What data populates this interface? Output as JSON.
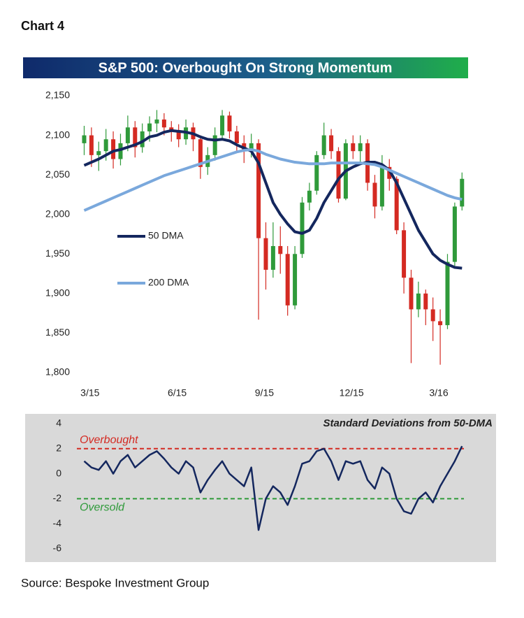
{
  "header": "Chart 4",
  "source": "Source: Bespoke Investment Group",
  "chart_data": [
    {
      "type": "candlestick",
      "title": "S&P 500: Overbought On Strong Momentum",
      "x": [
        2.8,
        3.05,
        3.3,
        3.55,
        3.8,
        4.05,
        4.3,
        4.55,
        4.8,
        5.05,
        5.3,
        5.55,
        5.8,
        6.05,
        6.3,
        6.55,
        6.8,
        7.05,
        7.3,
        7.55,
        7.8,
        8.05,
        8.3,
        8.55,
        8.8,
        9.05,
        9.3,
        9.55,
        9.8,
        10.05,
        10.3,
        10.55,
        10.8,
        11.05,
        11.3,
        11.55,
        11.8,
        12.05,
        12.3,
        12.55,
        12.8,
        13.05,
        13.3,
        13.55,
        13.8,
        14.05,
        14.3,
        14.55,
        14.8,
        15.05,
        15.3,
        15.55,
        15.8
      ],
      "open": [
        2090,
        2100,
        2075,
        2080,
        2095,
        2070,
        2090,
        2110,
        2085,
        2105,
        2115,
        2120,
        2110,
        2105,
        2095,
        2110,
        2095,
        2060,
        2075,
        2100,
        2125,
        2105,
        2090,
        2080,
        2090,
        1970,
        1930,
        1960,
        1950,
        1885,
        1950,
        2015,
        2030,
        2075,
        2100,
        2080,
        2020,
        2090,
        2080,
        2090,
        2040,
        2010,
        2060,
        2045,
        1980,
        1920,
        1880,
        1900,
        1880,
        1865,
        1860,
        1940,
        2010
      ],
      "high": [
        2112,
        2110,
        2092,
        2108,
        2105,
        2102,
        2125,
        2118,
        2115,
        2124,
        2132,
        2128,
        2118,
        2114,
        2120,
        2116,
        2100,
        2085,
        2110,
        2132,
        2130,
        2112,
        2100,
        2102,
        2095,
        1990,
        1990,
        1985,
        1960,
        1960,
        2022,
        2040,
        2080,
        2116,
        2108,
        2085,
        2095,
        2100,
        2100,
        2095,
        2050,
        2075,
        2070,
        2048,
        1990,
        1930,
        1915,
        1905,
        1895,
        1880,
        1950,
        2015,
        2053
      ],
      "low": [
        2075,
        2060,
        2055,
        2068,
        2058,
        2062,
        2080,
        2072,
        2078,
        2092,
        2104,
        2100,
        2092,
        2085,
        2088,
        2080,
        2045,
        2050,
        2068,
        2095,
        2096,
        2080,
        2065,
        2072,
        1867,
        1905,
        1920,
        1925,
        1872,
        1880,
        1945,
        2005,
        2025,
        2070,
        2070,
        2015,
        2018,
        2070,
        2065,
        2030,
        1995,
        2005,
        2030,
        1975,
        1900,
        1812,
        1870,
        1860,
        1840,
        1810,
        1855,
        1935,
        2005
      ],
      "close": [
        2100,
        2075,
        2080,
        2095,
        2070,
        2090,
        2110,
        2085,
        2105,
        2115,
        2120,
        2110,
        2105,
        2095,
        2110,
        2095,
        2060,
        2075,
        2100,
        2125,
        2105,
        2090,
        2080,
        2090,
        1970,
        1930,
        1960,
        1950,
        1885,
        1950,
        2015,
        2030,
        2075,
        2100,
        2080,
        2020,
        2090,
        2080,
        2090,
        2040,
        2010,
        2060,
        2045,
        1980,
        1920,
        1880,
        1900,
        1880,
        1865,
        1860,
        1940,
        2010,
        2045
      ],
      "up_color": "#2f9a3a",
      "down_color": "#d42a22",
      "series": [
        {
          "name": "50 DMA",
          "color": "#14275e",
          "values": [
            2062,
            2066,
            2070,
            2075,
            2080,
            2082,
            2085,
            2088,
            2092,
            2098,
            2100,
            2104,
            2106,
            2105,
            2104,
            2102,
            2098,
            2095,
            2094,
            2095,
            2093,
            2088,
            2084,
            2080,
            2065,
            2040,
            2015,
            2000,
            1988,
            1978,
            1976,
            1980,
            1995,
            2015,
            2030,
            2045,
            2055,
            2060,
            2064,
            2066,
            2066,
            2063,
            2056,
            2040,
            2020,
            2000,
            1980,
            1965,
            1950,
            1942,
            1937,
            1933,
            1932
          ]
        },
        {
          "name": "200 DMA",
          "color": "#7aa8dc",
          "values": [
            2005,
            2009,
            2013,
            2017,
            2021,
            2025,
            2029,
            2033,
            2037,
            2041,
            2045,
            2049,
            2052,
            2055,
            2058,
            2061,
            2064,
            2067,
            2070,
            2073,
            2076,
            2079,
            2081,
            2082,
            2080,
            2076,
            2073,
            2070,
            2068,
            2066,
            2065,
            2064,
            2064,
            2064,
            2065,
            2065,
            2065,
            2065,
            2065,
            2064,
            2063,
            2060,
            2056,
            2052,
            2048,
            2044,
            2040,
            2036,
            2032,
            2028,
            2024,
            2021,
            2019
          ]
        }
      ],
      "xlim": [
        2.5,
        16.25
      ],
      "xticks": [
        {
          "value": 3,
          "label": "3/15"
        },
        {
          "value": 6,
          "label": "6/15"
        },
        {
          "value": 9,
          "label": "9/15"
        },
        {
          "value": 12,
          "label": "12/15"
        },
        {
          "value": 15,
          "label": "3/16"
        }
      ],
      "ylim": [
        1800,
        2150
      ],
      "yticks": [
        {
          "value": 1800,
          "label": "1,800"
        },
        {
          "value": 1850,
          "label": "1,850"
        },
        {
          "value": 1900,
          "label": "1,900"
        },
        {
          "value": 1950,
          "label": "1,950"
        },
        {
          "value": 2000,
          "label": "2,000"
        },
        {
          "value": 2050,
          "label": "2,050"
        },
        {
          "value": 2100,
          "label": "2,100"
        },
        {
          "value": 2150,
          "label": "2,150"
        }
      ]
    },
    {
      "type": "line",
      "title": "Standard Deviations from 50-DMA",
      "x": [
        2.8,
        3.05,
        3.3,
        3.55,
        3.8,
        4.05,
        4.3,
        4.55,
        4.8,
        5.05,
        5.3,
        5.55,
        5.8,
        6.05,
        6.3,
        6.55,
        6.8,
        7.05,
        7.3,
        7.55,
        7.8,
        8.05,
        8.3,
        8.55,
        8.8,
        9.05,
        9.3,
        9.55,
        9.8,
        10.05,
        10.3,
        10.55,
        10.8,
        11.05,
        11.3,
        11.55,
        11.8,
        12.05,
        12.3,
        12.55,
        12.8,
        13.05,
        13.3,
        13.55,
        13.8,
        14.05,
        14.3,
        14.55,
        14.8,
        15.05,
        15.3,
        15.55,
        15.8
      ],
      "values": [
        1,
        0.5,
        0.3,
        1,
        0,
        1,
        1.5,
        0.5,
        1,
        1.5,
        1.8,
        1.2,
        0.5,
        0,
        1,
        0.5,
        -1.5,
        -0.5,
        0.3,
        1,
        0,
        -0.5,
        -1,
        0.5,
        -4.5,
        -2,
        -1,
        -1.5,
        -2.5,
        -1,
        0.8,
        1,
        1.8,
        2,
        1,
        -0.5,
        1,
        0.8,
        1,
        -0.5,
        -1.2,
        0.5,
        0,
        -2,
        -3,
        -3.2,
        -2,
        -1.5,
        -2.3,
        -1,
        0,
        1,
        2.2
      ],
      "color": "#14275e",
      "reference_lines": [
        {
          "label": "Overbought",
          "value": 2,
          "color": "#d42a22"
        },
        {
          "label": "Oversold",
          "value": -2,
          "color": "#2f9a3a"
        }
      ],
      "xlim": [
        2.5,
        16.25
      ],
      "ylim": [
        -6,
        4
      ],
      "yticks": [
        4,
        2,
        0,
        -2,
        -4,
        -6
      ]
    }
  ]
}
